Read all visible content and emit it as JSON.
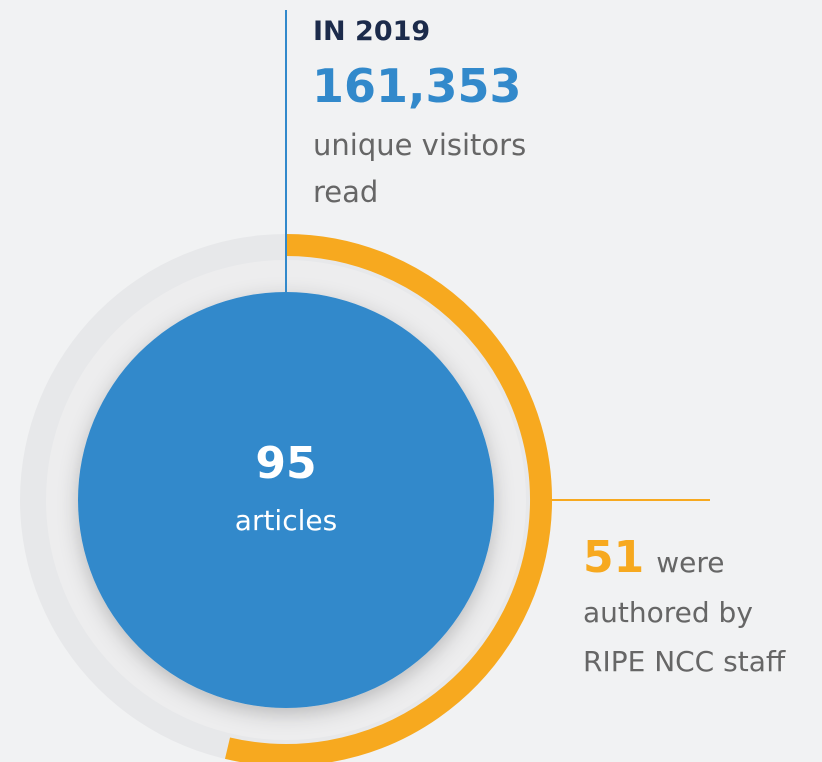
{
  "header": {
    "title": "IN 2019",
    "visitors": "161,353",
    "visitors_lines": [
      "unique visitors",
      "read"
    ]
  },
  "center": {
    "total": 95,
    "label": "articles"
  },
  "staff": {
    "count": 51,
    "suffix": "were",
    "lines": [
      "authored by",
      "RIPE NCC staff"
    ]
  }
}
